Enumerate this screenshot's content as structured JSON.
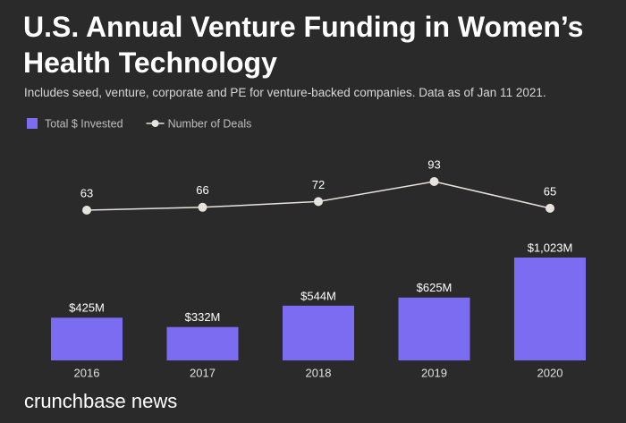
{
  "chart_data": {
    "type": "bar",
    "title": "U.S. Annual Venture Funding in Women’s Health Technology",
    "subtitle": "Includes seed, venture, corporate and PE for venture-backed companies. Data as of Jan 11 2021.",
    "categories": [
      "2016",
      "2017",
      "2018",
      "2019",
      "2020"
    ],
    "series": [
      {
        "name": "Total $ Invested",
        "type": "bar",
        "color": "#7b6cf2",
        "values": [
          425,
          332,
          544,
          625,
          1023
        ],
        "value_labels": [
          "$425M",
          "$332M",
          "$544M",
          "$625M",
          "$1,023M"
        ]
      },
      {
        "name": "Number of Deals",
        "type": "line",
        "color": "#e6e3dc",
        "values": [
          63,
          66,
          72,
          93,
          65
        ]
      }
    ],
    "brand": "crunchbase news"
  }
}
